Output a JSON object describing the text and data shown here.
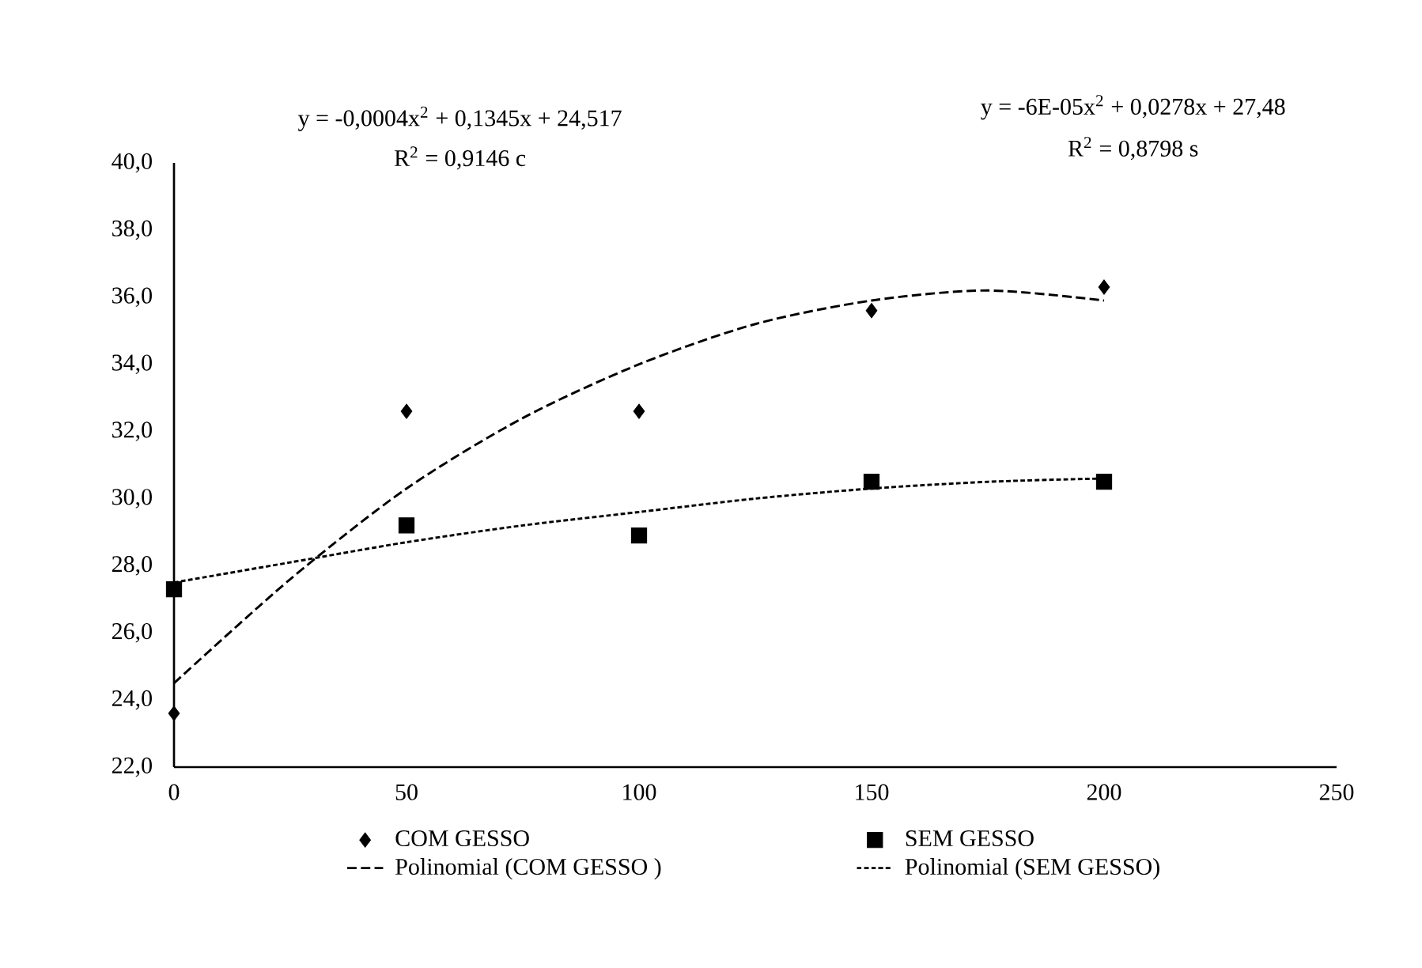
{
  "chart_data": {
    "type": "scatter",
    "x": [
      0,
      50,
      100,
      150,
      200
    ],
    "series": [
      {
        "name": "COM GESSO",
        "color": "#000000",
        "marker": "diamond",
        "values": [
          23.6,
          32.6,
          32.6,
          35.6,
          36.3
        ]
      },
      {
        "name": "SEM GESSO",
        "color": "#000000",
        "marker": "square",
        "values": [
          27.3,
          29.2,
          28.9,
          30.5,
          30.5
        ]
      },
      {
        "name": "Polinomial (COM GESSO )",
        "type": "line",
        "color": "#000000",
        "marker": "none",
        "line_style": "dashed",
        "x": [
          0,
          25,
          50,
          75,
          100,
          125,
          150,
          175,
          200
        ],
        "values": [
          24.5,
          27.6,
          30.3,
          32.4,
          34.0,
          35.2,
          35.9,
          36.2,
          35.9
        ]
      },
      {
        "name": "Polinomial (SEM GESSO)",
        "type": "line",
        "color": "#000000",
        "marker": "none",
        "line_style": "dotted",
        "x": [
          0,
          25,
          50,
          75,
          100,
          125,
          150,
          175,
          200
        ],
        "values": [
          27.5,
          28.1,
          28.7,
          29.2,
          29.6,
          30.0,
          30.3,
          30.5,
          30.6
        ]
      }
    ],
    "xlim": [
      0,
      250
    ],
    "xticks": [
      0,
      50,
      100,
      150,
      200,
      250
    ],
    "ylim": [
      22,
      40
    ],
    "yticks": [
      {
        "value": 22,
        "label": "22,0"
      },
      {
        "value": 24,
        "label": "24,0"
      },
      {
        "value": 26,
        "label": "26,0"
      },
      {
        "value": 28,
        "label": "28,0"
      },
      {
        "value": 30,
        "label": "30,0"
      },
      {
        "value": 32,
        "label": "32,0"
      },
      {
        "value": 34,
        "label": "34,0"
      },
      {
        "value": 36,
        "label": "36,0"
      },
      {
        "value": 38,
        "label": "38,0"
      },
      {
        "value": 40,
        "label": "40,0"
      }
    ],
    "annotations": [
      "y = -0,0004x$^{2}$ + 0,1345x + 24,517",
      "R$^{2}$ = 0,9146 c",
      "y = -6E-05x$^{2}$ + 0,0278x + 27,48",
      "R$^{2}$ = 0,8798 s"
    ],
    "grid": false,
    "legend": "bottom"
  }
}
